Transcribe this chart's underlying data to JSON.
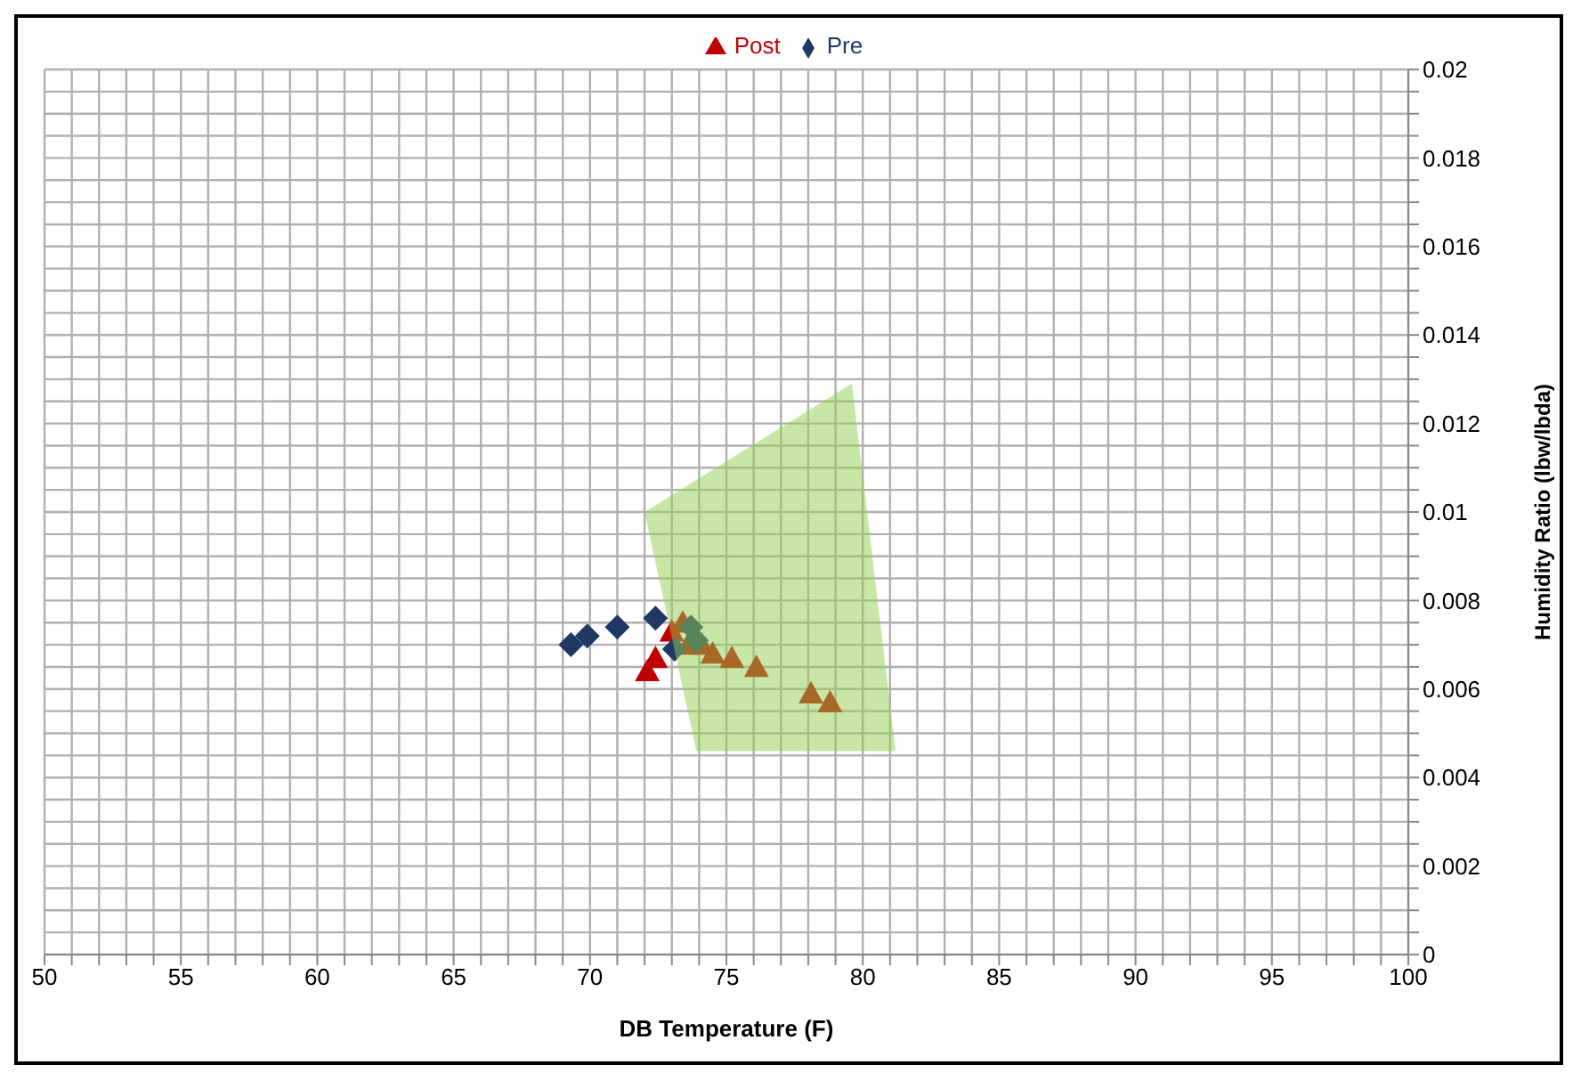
{
  "chart_data": {
    "type": "scatter",
    "xlabel": "DB Temperature (F)",
    "ylabel": "Humidity Ratio (lbw/lbda)",
    "xlim": [
      50,
      100
    ],
    "ylim": [
      0,
      0.02
    ],
    "grid": true,
    "legend": "top",
    "xticks": [
      50,
      {
        "value": 51,
        "label": null
      },
      {
        "value": 52,
        "label": null
      },
      {
        "value": 53,
        "label": null
      },
      {
        "value": 54,
        "label": null
      },
      55,
      {
        "value": 56,
        "label": null
      },
      {
        "value": 57,
        "label": null
      },
      {
        "value": 58,
        "label": null
      },
      {
        "value": 59,
        "label": null
      },
      60,
      {
        "value": 61,
        "label": null
      },
      {
        "value": 62,
        "label": null
      },
      {
        "value": 63,
        "label": null
      },
      {
        "value": 64,
        "label": null
      },
      65,
      {
        "value": 66,
        "label": null
      },
      {
        "value": 67,
        "label": null
      },
      {
        "value": 68,
        "label": null
      },
      {
        "value": 69,
        "label": null
      },
      70,
      {
        "value": 71,
        "label": null
      },
      {
        "value": 72,
        "label": null
      },
      {
        "value": 73,
        "label": null
      },
      {
        "value": 74,
        "label": null
      },
      75,
      {
        "value": 76,
        "label": null
      },
      {
        "value": 77,
        "label": null
      },
      {
        "value": 78,
        "label": null
      },
      {
        "value": 79,
        "label": null
      },
      80,
      {
        "value": 81,
        "label": null
      },
      {
        "value": 82,
        "label": null
      },
      {
        "value": 83,
        "label": null
      },
      {
        "value": 84,
        "label": null
      },
      85,
      {
        "value": 86,
        "label": null
      },
      {
        "value": 87,
        "label": null
      },
      {
        "value": 88,
        "label": null
      },
      {
        "value": 89,
        "label": null
      },
      90,
      {
        "value": 91,
        "label": null
      },
      {
        "value": 92,
        "label": null
      },
      {
        "value": 93,
        "label": null
      },
      {
        "value": 94,
        "label": null
      },
      95,
      {
        "value": 96,
        "label": null
      },
      {
        "value": 97,
        "label": null
      },
      {
        "value": 98,
        "label": null
      },
      {
        "value": 99,
        "label": null
      },
      100
    ],
    "yticks": [
      0,
      {
        "value": 0.0005,
        "label": null
      },
      {
        "value": 0.001,
        "label": null
      },
      {
        "value": 0.0015,
        "label": null
      },
      0.002,
      {
        "value": 0.0025,
        "label": null
      },
      {
        "value": 0.003,
        "label": null
      },
      {
        "value": 0.0035,
        "label": null
      },
      0.004,
      {
        "value": 0.0045,
        "label": null
      },
      {
        "value": 0.005,
        "label": null
      },
      {
        "value": 0.0055,
        "label": null
      },
      0.006,
      {
        "value": 0.0065,
        "label": null
      },
      {
        "value": 0.007,
        "label": null
      },
      {
        "value": 0.0075,
        "label": null
      },
      0.008,
      {
        "value": 0.0085,
        "label": null
      },
      {
        "value": 0.009,
        "label": null
      },
      {
        "value": 0.0095,
        "label": null
      },
      0.01,
      {
        "value": 0.0105,
        "label": null
      },
      {
        "value": 0.011,
        "label": null
      },
      {
        "value": 0.0115,
        "label": null
      },
      0.012,
      {
        "value": 0.0125,
        "label": null
      },
      {
        "value": 0.013,
        "label": null
      },
      {
        "value": 0.0135,
        "label": null
      },
      0.014,
      {
        "value": 0.0145,
        "label": null
      },
      {
        "value": 0.015,
        "label": null
      },
      {
        "value": 0.0155,
        "label": null
      },
      0.016,
      {
        "value": 0.0165,
        "label": null
      },
      {
        "value": 0.017,
        "label": null
      },
      {
        "value": 0.0175,
        "label": null
      },
      0.018,
      {
        "value": 0.0185,
        "label": null
      },
      {
        "value": 0.019,
        "label": null
      },
      {
        "value": 0.0195,
        "label": null
      },
      0.02
    ],
    "series": [
      {
        "name": "Post",
        "color": "#c00000",
        "marker": "triangle",
        "x": [
          72.1,
          72.4,
          73.0,
          73.4,
          73.6,
          74.1,
          74.5,
          75.2,
          76.1,
          78.1,
          78.8
        ],
        "values": [
          0.0064,
          0.0067,
          0.0073,
          0.0075,
          0.007,
          0.007,
          0.0068,
          0.0067,
          0.0065,
          0.0059,
          0.0057
        ]
      },
      {
        "name": "Pre",
        "color": "#1f3864",
        "marker": "diamond",
        "x": [
          69.3,
          69.9,
          71.0,
          72.4,
          73.1,
          73.7,
          73.9
        ],
        "values": [
          0.007,
          0.0072,
          0.0074,
          0.0076,
          0.0069,
          0.0074,
          0.0071
        ]
      },
      {
        "type": "area",
        "color": "#92d050",
        "x": [
          72.0,
          79.6,
          81.2,
          73.9
        ],
        "values": [
          0.01,
          0.0129,
          0.0046,
          0.0046
        ]
      }
    ]
  }
}
